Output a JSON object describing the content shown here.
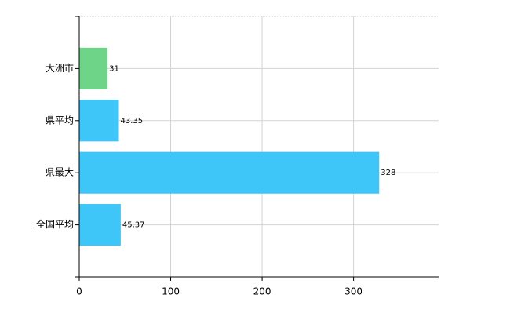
{
  "chart_data": {
    "type": "hbar",
    "categories": [
      "大洲市",
      "県平均",
      "県最大",
      "全国平均"
    ],
    "values": [
      31,
      43.35,
      328,
      45.37
    ],
    "colors": [
      "#6ed488",
      "#3ec6f8",
      "#3ec6f8",
      "#3ec6f8"
    ],
    "xlim": [
      0,
      393
    ],
    "xticks": [
      0,
      100,
      200,
      300
    ],
    "grid": true
  }
}
